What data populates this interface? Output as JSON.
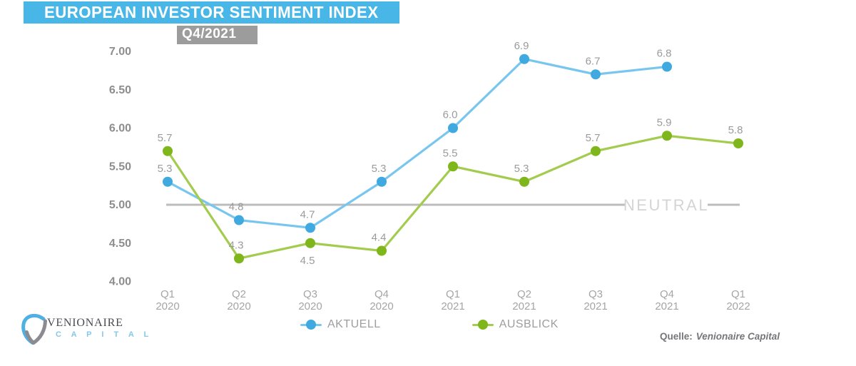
{
  "header": {
    "title": "EUROPEAN INVESTOR SENTIMENT INDEX",
    "subtitle": "Q4/2021",
    "banner_color": "#48b7e8",
    "badge_color": "#9c9c9c"
  },
  "chart_data": {
    "type": "line",
    "title": "EUROPEAN INVESTOR SENTIMENT INDEX",
    "subtitle": "Q4/2021",
    "categories": [
      "Q1 2020",
      "Q2 2020",
      "Q3 2020",
      "Q4 2020",
      "Q1 2021",
      "Q2 2021",
      "Q3 2021",
      "Q4 2021",
      "Q1 2022"
    ],
    "series": [
      {
        "name": "AKTUELL",
        "line_color": "#78c6ef",
        "marker_color": "#3fa9e0",
        "values": [
          5.3,
          4.8,
          4.7,
          5.3,
          6.0,
          6.9,
          6.7,
          6.8,
          null
        ]
      },
      {
        "name": "AUSBLICK",
        "line_color": "#a3cc4f",
        "marker_color": "#7eb61c",
        "values": [
          5.7,
          4.3,
          4.5,
          4.4,
          5.5,
          5.3,
          5.7,
          5.9,
          5.8
        ],
        "label_below_indices": [
          2
        ]
      }
    ],
    "yticks": [
      7.0,
      6.5,
      6.0,
      5.5,
      5.0,
      4.5,
      4.0
    ],
    "ylim": [
      4.0,
      7.0
    ],
    "xlabel": "",
    "ylabel": "",
    "grid": false,
    "legend_position": "bottom",
    "reference_line": {
      "value": 5.0,
      "label": "NEUTRAL",
      "color": "#bcbcbe",
      "label_color": "#d4d4d6"
    }
  },
  "footer": {
    "logo": {
      "name": "VENIONAIRE",
      "subname": "C A P I T A L"
    },
    "source_label": "Quelle:",
    "source_value": "Venionaire Capital"
  }
}
